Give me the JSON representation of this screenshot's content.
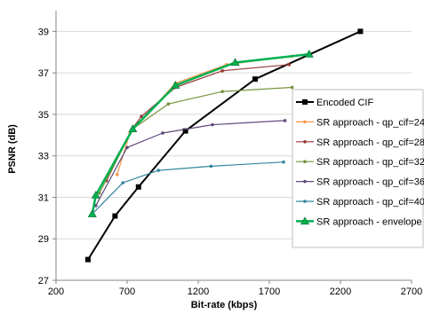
{
  "chart_data": {
    "type": "line",
    "title": "",
    "xlabel": "Bit-rate (kbps)",
    "ylabel": "PSNR (dB)",
    "xlim": [
      200,
      2700
    ],
    "ylim": [
      27,
      40
    ],
    "x_ticks": [
      200,
      700,
      1200,
      1700,
      2200,
      2700
    ],
    "y_ticks": [
      27,
      29,
      31,
      33,
      35,
      37,
      39
    ],
    "grid": "horizontal",
    "legend_position": "right",
    "series": [
      {
        "name": "Encoded CIF",
        "color": "#000000",
        "marker": "square",
        "points": [
          [
            425,
            28.0
          ],
          [
            615,
            30.1
          ],
          [
            780,
            31.5
          ],
          [
            1110,
            34.2
          ],
          [
            1600,
            36.7
          ],
          [
            2340,
            39.0
          ]
        ]
      },
      {
        "name": "SR approach - qp_cif=24",
        "color": "#f79646",
        "marker": "dot",
        "points": [
          [
            630,
            32.1
          ],
          [
            720,
            34.1
          ],
          [
            840,
            35.0
          ],
          [
            1040,
            36.5
          ],
          [
            1400,
            37.4
          ],
          [
            1860,
            37.8
          ]
        ]
      },
      {
        "name": "SR approach - qp_cif=28",
        "color": "#953735",
        "marker": "dot",
        "points": [
          [
            555,
            31.8
          ],
          [
            735,
            34.3
          ],
          [
            800,
            34.9
          ],
          [
            1040,
            36.3
          ],
          [
            1370,
            37.1
          ],
          [
            1840,
            37.4
          ]
        ]
      },
      {
        "name": "SR approach - qp_cif=32",
        "color": "#77933c",
        "marker": "dot",
        "points": [
          [
            505,
            31.2
          ],
          [
            740,
            34.3
          ],
          [
            990,
            35.5
          ],
          [
            1370,
            36.1
          ],
          [
            1860,
            36.3
          ]
        ]
      },
      {
        "name": "SR approach - qp_cif=36",
        "color": "#604a7b",
        "marker": "dot",
        "points": [
          [
            480,
            30.6
          ],
          [
            700,
            33.4
          ],
          [
            950,
            34.1
          ],
          [
            1300,
            34.5
          ],
          [
            1810,
            34.7
          ]
        ]
      },
      {
        "name": "SR approach - qp_cif=40",
        "color": "#31859c",
        "marker": "dot",
        "points": [
          [
            455,
            30.2
          ],
          [
            670,
            31.7
          ],
          [
            920,
            32.3
          ],
          [
            1290,
            32.5
          ],
          [
            1800,
            32.7
          ]
        ]
      },
      {
        "name": "SR approach - envelope",
        "color": "#00b050",
        "marker": "triangle",
        "points": [
          [
            455,
            30.2
          ],
          [
            480,
            31.1
          ],
          [
            740,
            34.3
          ],
          [
            1040,
            36.4
          ],
          [
            1460,
            37.5
          ],
          [
            1980,
            37.9
          ]
        ]
      }
    ]
  }
}
